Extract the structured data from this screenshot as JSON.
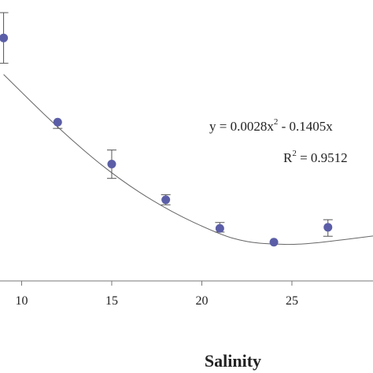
{
  "chart_data": {
    "type": "scatter",
    "title": "",
    "xlabel": "Salinity",
    "ylabel": "",
    "xlim": [
      8.8,
      29.5
    ],
    "ylim": [
      0,
      1
    ],
    "x_ticks": [
      10,
      15,
      20,
      25
    ],
    "x_tick_labels": [
      "10",
      "15",
      "20",
      "25"
    ],
    "grid": false,
    "legend": "none",
    "marker_color": "#5b5ea6",
    "series": [
      {
        "points": [
          {
            "x": 9,
            "y": 0.865,
            "err_low": 0.09,
            "err_high": 0.09
          },
          {
            "x": 12,
            "y": 0.565,
            "err_low": 0.022,
            "err_high": 0.0
          },
          {
            "x": 15,
            "y": 0.416,
            "err_low": 0.051,
            "err_high": 0.05
          },
          {
            "x": 18,
            "y": 0.289,
            "err_low": 0.018,
            "err_high": 0.018
          },
          {
            "x": 21,
            "y": 0.187,
            "err_low": 0.013,
            "err_high": 0.021
          },
          {
            "x": 24,
            "y": 0.138,
            "err_low": 0.0,
            "err_high": 0.0
          },
          {
            "x": 27,
            "y": 0.191,
            "err_low": 0.032,
            "err_high": 0.027
          }
        ]
      }
    ],
    "trendline": {
      "type": "polynomial-2",
      "equation": "y = 0.0028x",
      "equation_sup": "2",
      "equation_rest": " - 0.1405x",
      "r2_prefix": "R",
      "r2_sup": "2",
      "r2_rest": " = 0.9512",
      "points": [
        {
          "x": 9,
          "y": 0.735
        },
        {
          "x": 12,
          "y": 0.545
        },
        {
          "x": 15,
          "y": 0.38
        },
        {
          "x": 18,
          "y": 0.255
        },
        {
          "x": 21,
          "y": 0.165
        },
        {
          "x": 22.5,
          "y": 0.138
        },
        {
          "x": 24,
          "y": 0.13
        },
        {
          "x": 25.5,
          "y": 0.13
        },
        {
          "x": 27,
          "y": 0.14
        },
        {
          "x": 29.5,
          "y": 0.16
        }
      ]
    }
  }
}
